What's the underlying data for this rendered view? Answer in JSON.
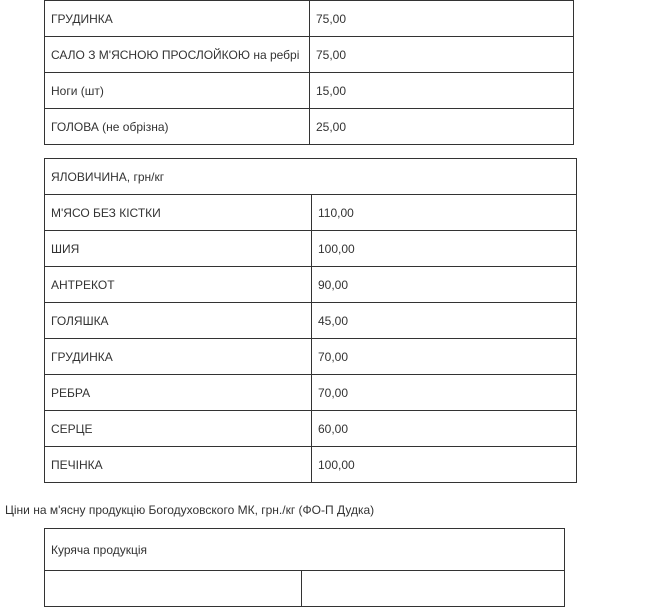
{
  "pork_rows": [
    {
      "name": "ГРУДИНКА",
      "price": "75,00"
    },
    {
      "name": "САЛО З М'ЯСНОЮ ПРОСЛОЙКОЮ на ребрі",
      "price": "75,00"
    },
    {
      "name": "Ноги (шт)",
      "price": "15,00"
    },
    {
      "name": "ГОЛОВА (не обрізна)",
      "price": "25,00"
    }
  ],
  "beef": {
    "header": "ЯЛОВИЧИНА, грн/кг",
    "rows": [
      {
        "name": "М'ЯСО БЕЗ КІСТКИ",
        "price": "110,00"
      },
      {
        "name": "ШИЯ",
        "price": "100,00"
      },
      {
        "name": "АНТРЕКОТ",
        "price": "90,00"
      },
      {
        "name": "ГОЛЯШКА",
        "price": "45,00"
      },
      {
        "name": "ГРУДИНКА",
        "price": "70,00"
      },
      {
        "name": "РЕБРА",
        "price": "70,00"
      },
      {
        "name": "СЕРЦЕ",
        "price": "60,00"
      },
      {
        "name": "ПЕЧІНКА",
        "price": "100,00"
      }
    ]
  },
  "caption": "Ціни на м'ясну продукцію Богодуховского МК, грн./кг (ФО-П Дудка)",
  "chicken": {
    "header": "Куряча продукція"
  }
}
